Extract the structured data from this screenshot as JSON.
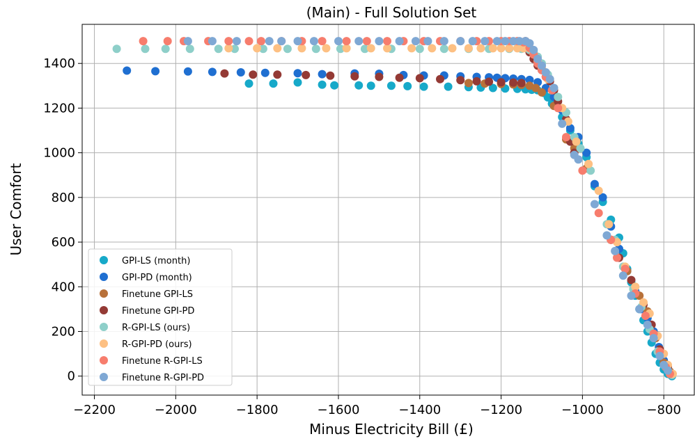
{
  "chart_data": {
    "type": "scatter",
    "title": "(Main) - Full Solution Set",
    "xlabel": "Minus Electricity Bill (£)",
    "ylabel": "User Comfort",
    "xlim": [
      -2230,
      -725
    ],
    "ylim": [
      -85,
      1575
    ],
    "xticks": [
      -2200,
      -2000,
      -1800,
      -1600,
      -1400,
      -1200,
      -1000,
      -800
    ],
    "xtick_labels": [
      "−2200",
      "−2000",
      "−1800",
      "−1600",
      "−1400",
      "−1200",
      "−1000",
      "−800"
    ],
    "yticks": [
      0,
      200,
      400,
      600,
      800,
      1000,
      1200,
      1400
    ],
    "ytick_labels": [
      "0",
      "200",
      "400",
      "600",
      "800",
      "1000",
      "1200",
      "1400"
    ],
    "grid": true,
    "legend_position": "lower-left",
    "series": [
      {
        "name": "GPI-LS (month)",
        "color": "#17a9c9",
        "points": [
          [
            -1820,
            1310
          ],
          [
            -1760,
            1310
          ],
          [
            -1700,
            1315
          ],
          [
            -1640,
            1305
          ],
          [
            -1610,
            1302
          ],
          [
            -1550,
            1302
          ],
          [
            -1520,
            1300
          ],
          [
            -1470,
            1300
          ],
          [
            -1430,
            1298
          ],
          [
            -1390,
            1296
          ],
          [
            -1330,
            1296
          ],
          [
            -1280,
            1294
          ],
          [
            -1250,
            1292
          ],
          [
            -1220,
            1290
          ],
          [
            -1190,
            1288
          ],
          [
            -1160,
            1286
          ],
          [
            -1140,
            1284
          ],
          [
            -1125,
            1282
          ],
          [
            -1110,
            1280
          ],
          [
            -1095,
            1268
          ],
          [
            -1085,
            1248
          ],
          [
            -1075,
            1220
          ],
          [
            -1050,
            1160
          ],
          [
            -1030,
            1100
          ],
          [
            -1010,
            1040
          ],
          [
            -990,
            980
          ],
          [
            -970,
            850
          ],
          [
            -950,
            780
          ],
          [
            -930,
            700
          ],
          [
            -910,
            620
          ],
          [
            -900,
            550
          ],
          [
            -890,
            480
          ],
          [
            -880,
            420
          ],
          [
            -870,
            360
          ],
          [
            -860,
            300
          ],
          [
            -850,
            250
          ],
          [
            -840,
            200
          ],
          [
            -830,
            150
          ],
          [
            -820,
            100
          ],
          [
            -810,
            60
          ],
          [
            -800,
            30
          ],
          [
            -790,
            10
          ],
          [
            -780,
            0
          ]
        ]
      },
      {
        "name": "GPI-PD (month)",
        "color": "#1f6fd1",
        "points": [
          [
            -2120,
            1368
          ],
          [
            -2050,
            1365
          ],
          [
            -1970,
            1364
          ],
          [
            -1910,
            1362
          ],
          [
            -1840,
            1360
          ],
          [
            -1780,
            1358
          ],
          [
            -1700,
            1356
          ],
          [
            -1640,
            1352
          ],
          [
            -1560,
            1355
          ],
          [
            -1500,
            1354
          ],
          [
            -1440,
            1348
          ],
          [
            -1390,
            1346
          ],
          [
            -1340,
            1346
          ],
          [
            -1300,
            1342
          ],
          [
            -1260,
            1340
          ],
          [
            -1230,
            1338
          ],
          [
            -1210,
            1336
          ],
          [
            -1190,
            1334
          ],
          [
            -1170,
            1332
          ],
          [
            -1150,
            1330
          ],
          [
            -1130,
            1326
          ],
          [
            -1110,
            1316
          ],
          [
            -1090,
            1290
          ],
          [
            -1070,
            1250
          ],
          [
            -1050,
            1190
          ],
          [
            -1030,
            1110
          ],
          [
            -1010,
            1070
          ],
          [
            -990,
            1000
          ],
          [
            -970,
            860
          ],
          [
            -950,
            800
          ],
          [
            -930,
            670
          ],
          [
            -910,
            570
          ],
          [
            -890,
            470
          ],
          [
            -870,
            380
          ],
          [
            -855,
            300
          ],
          [
            -840,
            260
          ],
          [
            -825,
            200
          ],
          [
            -812,
            130
          ],
          [
            -800,
            70
          ],
          [
            -790,
            30
          ],
          [
            -780,
            5
          ]
        ]
      },
      {
        "name": "Finetune GPI-LS",
        "color": "#b8713a",
        "points": [
          [
            -1280,
            1312
          ],
          [
            -1240,
            1310
          ],
          [
            -1200,
            1308
          ],
          [
            -1170,
            1306
          ],
          [
            -1150,
            1304
          ],
          [
            -1130,
            1300
          ],
          [
            -1115,
            1290
          ],
          [
            -1100,
            1270
          ],
          [
            -1070,
            1210
          ],
          [
            -1040,
            1060
          ],
          [
            -1020,
            1020
          ],
          [
            -990,
            930
          ],
          [
            -930,
            610
          ],
          [
            -890,
            470
          ],
          [
            -860,
            360
          ],
          [
            -840,
            290
          ],
          [
            -820,
            170
          ],
          [
            -800,
            60
          ],
          [
            -785,
            20
          ]
        ]
      },
      {
        "name": "Finetune GPI-PD",
        "color": "#943a35",
        "points": [
          [
            -1880,
            1355
          ],
          [
            -1810,
            1350
          ],
          [
            -1750,
            1350
          ],
          [
            -1680,
            1348
          ],
          [
            -1620,
            1345
          ],
          [
            -1560,
            1342
          ],
          [
            -1500,
            1340
          ],
          [
            -1450,
            1336
          ],
          [
            -1400,
            1334
          ],
          [
            -1350,
            1330
          ],
          [
            -1300,
            1325
          ],
          [
            -1260,
            1320
          ],
          [
            -1230,
            1318
          ],
          [
            -1200,
            1316
          ],
          [
            -1170,
            1314
          ],
          [
            -1150,
            1312
          ],
          [
            -1140,
            1500
          ],
          [
            -1135,
            1480
          ],
          [
            -1130,
            1450
          ],
          [
            -1120,
            1420
          ],
          [
            -1110,
            1390
          ],
          [
            -1100,
            1370
          ],
          [
            -1090,
            1340
          ],
          [
            -1080,
            1320
          ],
          [
            -1070,
            1280
          ],
          [
            -1060,
            1230
          ],
          [
            -1040,
            1150
          ],
          [
            -1030,
            1050
          ],
          [
            -1020,
            1000
          ],
          [
            -930,
            610
          ],
          [
            -910,
            530
          ],
          [
            -880,
            430
          ],
          [
            -850,
            320
          ],
          [
            -830,
            230
          ],
          [
            -810,
            120
          ],
          [
            -790,
            40
          ]
        ]
      },
      {
        "name": "R-GPI-LS (ours)",
        "color": "#8ecfc9",
        "points": [
          [
            -2145,
            1465
          ],
          [
            -2075,
            1465
          ],
          [
            -2025,
            1465
          ],
          [
            -1965,
            1465
          ],
          [
            -1895,
            1465
          ],
          [
            -1855,
            1465
          ],
          [
            -1785,
            1465
          ],
          [
            -1725,
            1465
          ],
          [
            -1655,
            1465
          ],
          [
            -1595,
            1465
          ],
          [
            -1535,
            1465
          ],
          [
            -1470,
            1465
          ],
          [
            -1400,
            1465
          ],
          [
            -1340,
            1465
          ],
          [
            -1280,
            1465
          ],
          [
            -1230,
            1465
          ],
          [
            -1180,
            1465
          ],
          [
            -1150,
            1465
          ],
          [
            -1130,
            1460
          ],
          [
            -1120,
            1450
          ],
          [
            -1110,
            1430
          ],
          [
            -1100,
            1400
          ],
          [
            -1085,
            1350
          ],
          [
            -1060,
            1250
          ],
          [
            -1040,
            1180
          ],
          [
            -1020,
            1070
          ],
          [
            -1005,
            1020
          ],
          [
            -980,
            920
          ],
          [
            -940,
            680
          ],
          [
            -920,
            610
          ],
          [
            -900,
            490
          ],
          [
            -875,
            390
          ],
          [
            -855,
            310
          ],
          [
            -835,
            210
          ],
          [
            -815,
            110
          ],
          [
            -795,
            40
          ],
          [
            -780,
            5
          ]
        ]
      },
      {
        "name": "R-GPI-PD (ours)",
        "color": "#fdc083",
        "points": [
          [
            -1870,
            1468
          ],
          [
            -1800,
            1468
          ],
          [
            -1750,
            1468
          ],
          [
            -1690,
            1468
          ],
          [
            -1630,
            1468
          ],
          [
            -1580,
            1468
          ],
          [
            -1520,
            1468
          ],
          [
            -1480,
            1468
          ],
          [
            -1420,
            1468
          ],
          [
            -1370,
            1468
          ],
          [
            -1320,
            1468
          ],
          [
            -1280,
            1468
          ],
          [
            -1250,
            1468
          ],
          [
            -1220,
            1468
          ],
          [
            -1200,
            1468
          ],
          [
            -1180,
            1468
          ],
          [
            -1160,
            1468
          ],
          [
            -1145,
            1468
          ],
          [
            -1130,
            1468
          ],
          [
            -1120,
            1440
          ],
          [
            -1110,
            1410
          ],
          [
            -1100,
            1380
          ],
          [
            -1085,
            1330
          ],
          [
            -1070,
            1290
          ],
          [
            -1050,
            1200
          ],
          [
            -1035,
            1140
          ],
          [
            -1015,
            1050
          ],
          [
            -985,
            950
          ],
          [
            -960,
            830
          ],
          [
            -935,
            680
          ],
          [
            -915,
            600
          ],
          [
            -895,
            490
          ],
          [
            -870,
            400
          ],
          [
            -850,
            330
          ],
          [
            -835,
            280
          ],
          [
            -815,
            180
          ],
          [
            -800,
            100
          ],
          [
            -790,
            50
          ],
          [
            -778,
            10
          ]
        ]
      },
      {
        "name": "Finetune R-GPI-LS",
        "color": "#f77d6d",
        "points": [
          [
            -2080,
            1500
          ],
          [
            -2020,
            1500
          ],
          [
            -1980,
            1500
          ],
          [
            -1920,
            1500
          ],
          [
            -1870,
            1500
          ],
          [
            -1820,
            1500
          ],
          [
            -1790,
            1500
          ],
          [
            -1740,
            1500
          ],
          [
            -1690,
            1500
          ],
          [
            -1640,
            1500
          ],
          [
            -1580,
            1500
          ],
          [
            -1530,
            1500
          ],
          [
            -1480,
            1500
          ],
          [
            -1440,
            1500
          ],
          [
            -1390,
            1500
          ],
          [
            -1350,
            1500
          ],
          [
            -1300,
            1500
          ],
          [
            -1260,
            1500
          ],
          [
            -1230,
            1500
          ],
          [
            -1200,
            1500
          ],
          [
            -1180,
            1500
          ],
          [
            -1160,
            1500
          ],
          [
            -1145,
            1495
          ],
          [
            -1130,
            1470
          ],
          [
            -1120,
            1440
          ],
          [
            -1110,
            1400
          ],
          [
            -1100,
            1370
          ],
          [
            -1090,
            1340
          ],
          [
            -1075,
            1280
          ],
          [
            -1060,
            1200
          ],
          [
            -1040,
            1070
          ],
          [
            -1000,
            920
          ],
          [
            -960,
            730
          ],
          [
            -930,
            610
          ],
          [
            -915,
            530
          ],
          [
            -895,
            480
          ],
          [
            -870,
            370
          ],
          [
            -845,
            270
          ],
          [
            -825,
            190
          ],
          [
            -810,
            110
          ],
          [
            -795,
            40
          ],
          [
            -785,
            10
          ]
        ]
      },
      {
        "name": "Finetune R-GPI-PD",
        "color": "#7fa8d4",
        "points": [
          [
            -1970,
            1500
          ],
          [
            -1910,
            1500
          ],
          [
            -1850,
            1500
          ],
          [
            -1770,
            1500
          ],
          [
            -1740,
            1500
          ],
          [
            -1700,
            1500
          ],
          [
            -1660,
            1500
          ],
          [
            -1600,
            1500
          ],
          [
            -1550,
            1500
          ],
          [
            -1500,
            1500
          ],
          [
            -1450,
            1500
          ],
          [
            -1410,
            1500
          ],
          [
            -1380,
            1500
          ],
          [
            -1340,
            1500
          ],
          [
            -1300,
            1500
          ],
          [
            -1270,
            1500
          ],
          [
            -1240,
            1500
          ],
          [
            -1210,
            1500
          ],
          [
            -1190,
            1500
          ],
          [
            -1170,
            1500
          ],
          [
            -1155,
            1500
          ],
          [
            -1140,
            1500
          ],
          [
            -1130,
            1490
          ],
          [
            -1120,
            1460
          ],
          [
            -1110,
            1420
          ],
          [
            -1100,
            1390
          ],
          [
            -1090,
            1360
          ],
          [
            -1080,
            1330
          ],
          [
            -1070,
            1290
          ],
          [
            -1050,
            1130
          ],
          [
            -1020,
            990
          ],
          [
            -1010,
            970
          ],
          [
            -970,
            770
          ],
          [
            -940,
            630
          ],
          [
            -920,
            560
          ],
          [
            -900,
            450
          ],
          [
            -880,
            360
          ],
          [
            -860,
            300
          ],
          [
            -840,
            230
          ],
          [
            -825,
            170
          ],
          [
            -810,
            90
          ],
          [
            -800,
            50
          ],
          [
            -790,
            25
          ]
        ]
      }
    ]
  }
}
